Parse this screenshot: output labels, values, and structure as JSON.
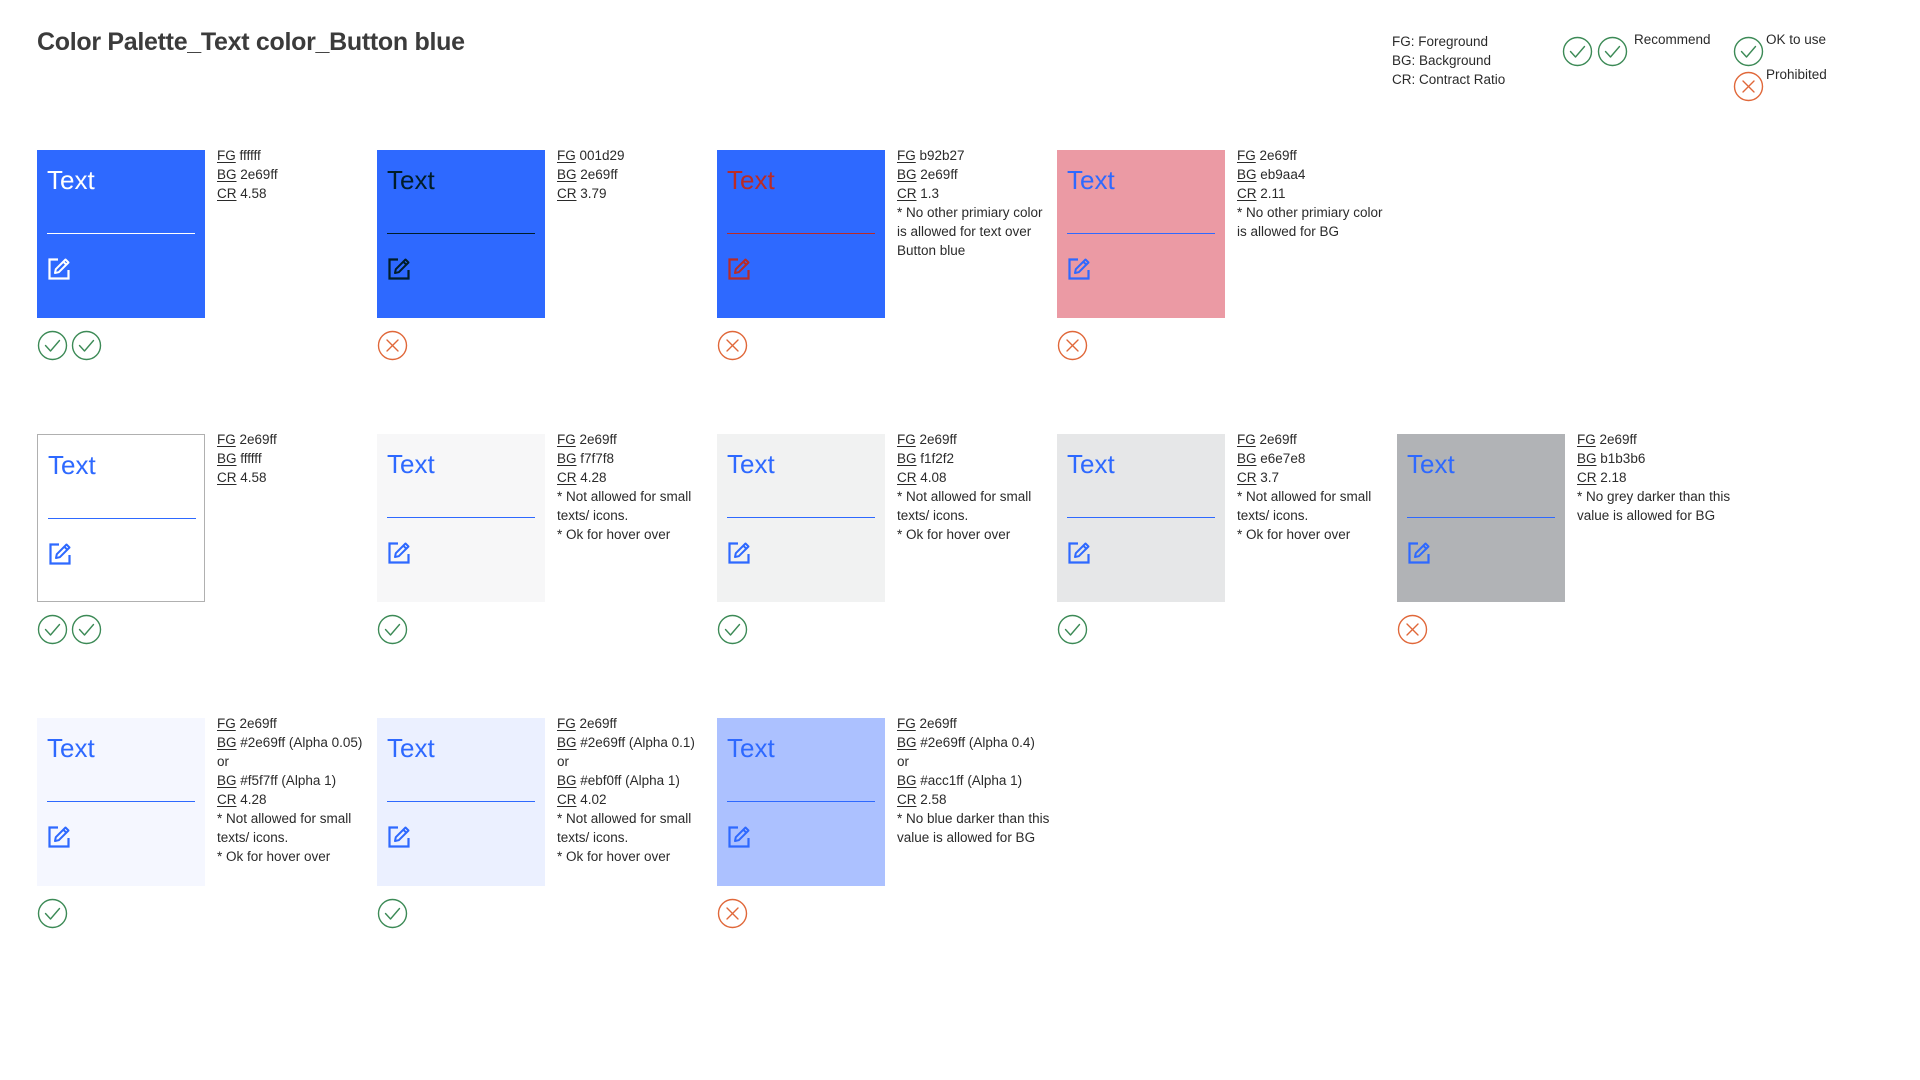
{
  "title": "Color Palette_Text color_Button blue",
  "legend": {
    "abbreviations": [
      "FG: Foreground",
      "BG: Background",
      "CR: Contract Ratio"
    ],
    "recommend_label": "Recommend",
    "ok_label": "OK to use",
    "prohibited_label": "Prohibited",
    "colors": {
      "check": "#3c8a56",
      "cross": "#e0683a"
    }
  },
  "cards": [
    {
      "bg": "#2e69ff",
      "fg": "#ffffff",
      "border": "none",
      "sample": "Text",
      "status": "recommend",
      "status_icons": [
        "check-icon",
        "check-icon"
      ],
      "lines": [
        {
          "k": "FG",
          "v": "ffffff"
        },
        {
          "k": "BG",
          "v": "2e69ff"
        },
        {
          "k": "CR",
          "v": "4.58"
        }
      ],
      "notes": []
    },
    {
      "bg": "#2e69ff",
      "fg": "#001d29",
      "border": "none",
      "sample": "Text",
      "status": "prohibited",
      "status_icons": [
        "cross-icon"
      ],
      "lines": [
        {
          "k": "FG",
          "v": "001d29"
        },
        {
          "k": "BG",
          "v": "2e69ff"
        },
        {
          "k": "CR",
          "v": "3.79"
        }
      ],
      "notes": []
    },
    {
      "bg": "#2e69ff",
      "fg": "#b92b27",
      "border": "none",
      "sample": "Text",
      "status": "prohibited",
      "status_icons": [
        "cross-icon"
      ],
      "lines": [
        {
          "k": "FG",
          "v": "b92b27"
        },
        {
          "k": "BG",
          "v": "2e69ff"
        },
        {
          "k": "CR",
          "v": "1.3"
        }
      ],
      "notes": [
        "* No other primiary color is allowed for text over Button blue"
      ]
    },
    {
      "bg": "#eb9aa4",
      "fg": "#2e69ff",
      "border": "none",
      "sample": "Text",
      "status": "prohibited",
      "status_icons": [
        "cross-icon"
      ],
      "lines": [
        {
          "k": "FG",
          "v": "2e69ff"
        },
        {
          "k": "BG",
          "v": "eb9aa4"
        },
        {
          "k": "CR",
          "v": "2.11"
        }
      ],
      "notes": [
        "* No other primiary color is allowed for BG"
      ]
    },
    {
      "bg": "#ffffff",
      "fg": "#2e69ff",
      "border": "#b0b0b0",
      "sample": "Text",
      "status": "recommend",
      "status_icons": [
        "check-icon",
        "check-icon"
      ],
      "lines": [
        {
          "k": "FG",
          "v": "2e69ff"
        },
        {
          "k": "BG",
          "v": "ffffff"
        },
        {
          "k": "CR",
          "v": "4.58"
        }
      ],
      "notes": []
    },
    {
      "bg": "#f7f7f8",
      "fg": "#2e69ff",
      "border": "none",
      "sample": "Text",
      "status": "ok",
      "status_icons": [
        "check-icon"
      ],
      "lines": [
        {
          "k": "FG",
          "v": "2e69ff"
        },
        {
          "k": "BG",
          "v": "f7f7f8"
        },
        {
          "k": "CR",
          "v": "4.28"
        }
      ],
      "notes": [
        "* Not allowed for small texts/ icons.",
        "* Ok for hover over"
      ]
    },
    {
      "bg": "#f1f2f2",
      "fg": "#2e69ff",
      "border": "none",
      "sample": "Text",
      "status": "ok",
      "status_icons": [
        "check-icon"
      ],
      "lines": [
        {
          "k": "FG",
          "v": "2e69ff"
        },
        {
          "k": "BG",
          "v": "f1f2f2"
        },
        {
          "k": "CR",
          "v": "4.08"
        }
      ],
      "notes": [
        "* Not allowed for small texts/ icons.",
        "* Ok for hover over"
      ]
    },
    {
      "bg": "#e6e7e8",
      "fg": "#2e69ff",
      "border": "none",
      "sample": "Text",
      "status": "ok",
      "status_icons": [
        "check-icon"
      ],
      "lines": [
        {
          "k": "FG",
          "v": "2e69ff"
        },
        {
          "k": "BG",
          "v": "e6e7e8"
        },
        {
          "k": "CR",
          "v": "3.7"
        }
      ],
      "notes": [
        "* Not allowed for small texts/ icons.",
        "* Ok for hover over"
      ]
    },
    {
      "bg": "#b1b3b6",
      "fg": "#2e69ff",
      "border": "none",
      "sample": "Text",
      "status": "prohibited",
      "status_icons": [
        "cross-icon"
      ],
      "lines": [
        {
          "k": "FG",
          "v": "2e69ff"
        },
        {
          "k": "BG",
          "v": "b1b3b6"
        },
        {
          "k": "CR",
          "v": "2.18"
        }
      ],
      "notes": [
        "* No grey darker than this value is allowed for BG"
      ]
    },
    {
      "bg": "#f5f7ff",
      "fg": "#2e69ff",
      "border": "none",
      "sample": "Text",
      "status": "ok",
      "status_icons": [
        "check-icon"
      ],
      "lines": [
        {
          "k": "FG",
          "v": "2e69ff"
        },
        {
          "k": "BG",
          "v": "#2e69ff (Alpha 0.05)"
        },
        {
          "k": "",
          "v": "or"
        },
        {
          "k": "BG",
          "v": "#f5f7ff (Alpha 1)"
        },
        {
          "k": "CR",
          "v": "4.28"
        }
      ],
      "notes": [
        "* Not allowed for small texts/ icons.",
        "* Ok for hover over"
      ]
    },
    {
      "bg": "#ebf0ff",
      "fg": "#2e69ff",
      "border": "none",
      "sample": "Text",
      "status": "ok",
      "status_icons": [
        "check-icon"
      ],
      "lines": [
        {
          "k": "FG",
          "v": "2e69ff"
        },
        {
          "k": "BG",
          "v": "#2e69ff (Alpha 0.1)"
        },
        {
          "k": "",
          "v": "or"
        },
        {
          "k": "BG",
          "v": "#ebf0ff (Alpha 1)"
        },
        {
          "k": "CR",
          "v": "4.02"
        }
      ],
      "notes": [
        "* Not allowed for small texts/ icons.",
        "* Ok for hover over"
      ]
    },
    {
      "bg": "#acc1ff",
      "fg": "#2e69ff",
      "border": "none",
      "sample": "Text",
      "status": "prohibited",
      "status_icons": [
        "cross-icon"
      ],
      "lines": [
        {
          "k": "FG",
          "v": "2e69ff"
        },
        {
          "k": "BG",
          "v": "#2e69ff (Alpha 0.4)"
        },
        {
          "k": "",
          "v": "or"
        },
        {
          "k": "BG",
          "v": "#acc1ff (Alpha 1)"
        },
        {
          "k": "CR",
          "v": "2.58"
        }
      ],
      "notes": [
        "* No blue darker than this value is allowed for BG"
      ]
    }
  ]
}
